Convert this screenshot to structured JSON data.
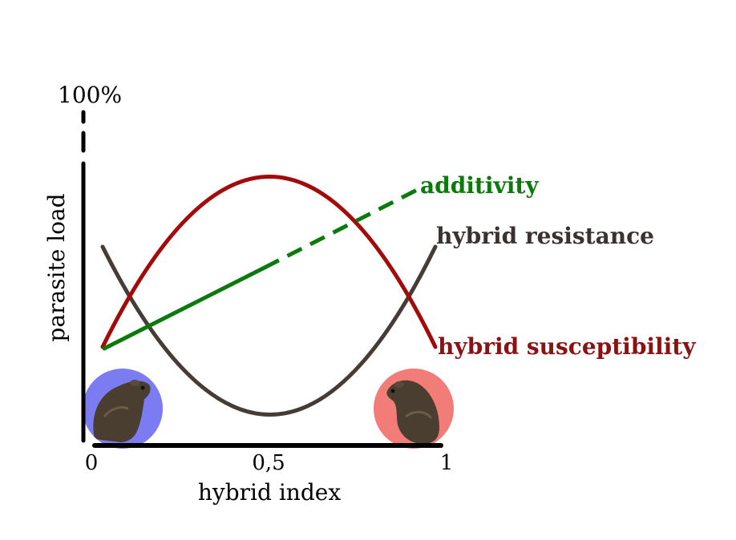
{
  "diagram": {
    "y_axis": {
      "title": "parasite load",
      "top_label": "100%"
    },
    "x_axis": {
      "title": "hybrid index",
      "ticks": [
        "0",
        "0,5",
        "1"
      ]
    },
    "curves": [
      {
        "key": "additivity",
        "label": "additivity",
        "color": "#0a7a0a",
        "shape": "linear-increase"
      },
      {
        "key": "resistance",
        "label": "hybrid resistance",
        "color": "#463c36",
        "shape": "u-shape"
      },
      {
        "key": "susceptibility",
        "label": "hybrid susceptibility",
        "color": "#a30a0a",
        "shape": "inverted-u"
      }
    ],
    "parental_markers": [
      {
        "key": "left",
        "color": "#7c7cf2",
        "icon": "mouse-icon"
      },
      {
        "key": "right",
        "color": "#f27c78",
        "icon": "mouse-icon"
      }
    ]
  }
}
